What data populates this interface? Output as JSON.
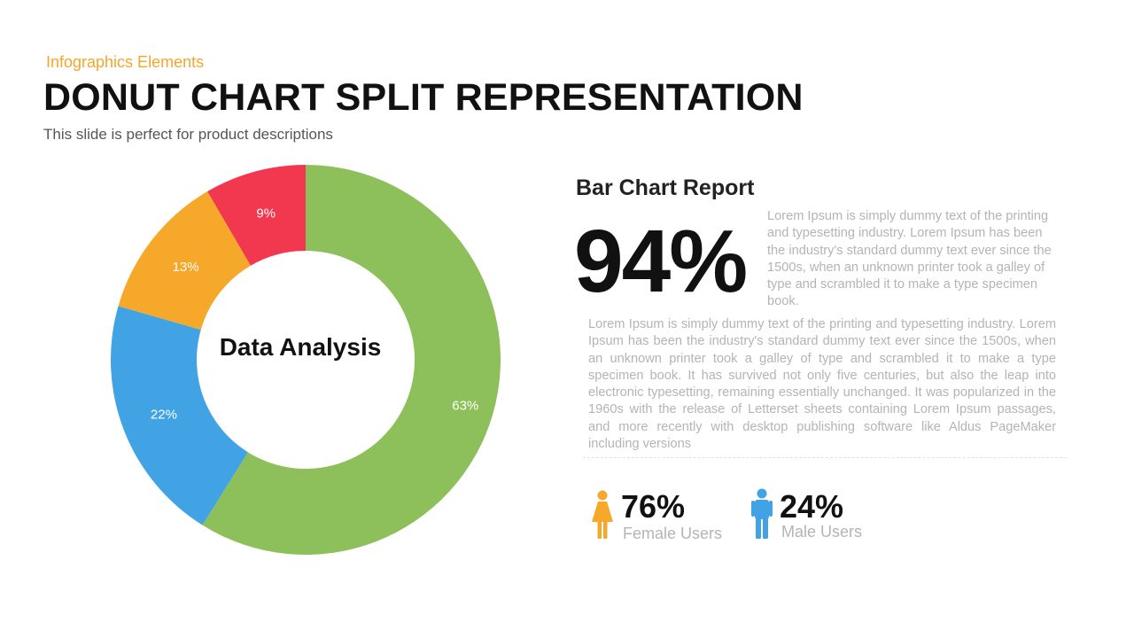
{
  "header": {
    "eyebrow": "Infographics  Elements",
    "title": "DONUT CHART SPLIT REPRESENTATION",
    "description": "This slide is perfect for product descriptions"
  },
  "chart_data": {
    "type": "pie",
    "center_label": "Data Analysis",
    "slices": [
      {
        "label": "63%",
        "value": 63,
        "color": "#8DC05A"
      },
      {
        "label": "22%",
        "value": 22,
        "color": "#41A3E4"
      },
      {
        "label": "13%",
        "value": 13,
        "color": "#F6A82A"
      },
      {
        "label": "9%",
        "value": 9,
        "color": "#F2384E"
      }
    ]
  },
  "report": {
    "title": "Bar Chart Report",
    "big_value": "94%",
    "paragraph_short": "Lorem Ipsum is simply dummy text of the printing and typesetting industry. Lorem Ipsum has been the industry's standard dummy text ever since the 1500s, when an unknown printer took a galley of type and scrambled it to make a type specimen book.",
    "paragraph_long": "Lorem Ipsum is simply dummy text of the printing and typesetting industry. Lorem Ipsum has been the industry's standard dummy text ever since the 1500s, when an unknown printer took a galley of type and scrambled it to make a type specimen book. It has survived not only five centuries, but also the leap into electronic typesetting, remaining essentially unchanged. It was popularized in the 1960s with the release of Letterset sheets containing Lorem Ipsum passages, and more recently with desktop publishing software like Aldus PageMaker including versions"
  },
  "stats": {
    "female": {
      "value": "76%",
      "label": "Female Users",
      "icon": "female-user-icon",
      "color": "#F6A82A"
    },
    "male": {
      "value": "24%",
      "label": "Male Users",
      "icon": "male-user-icon",
      "color": "#41A3E4"
    }
  }
}
